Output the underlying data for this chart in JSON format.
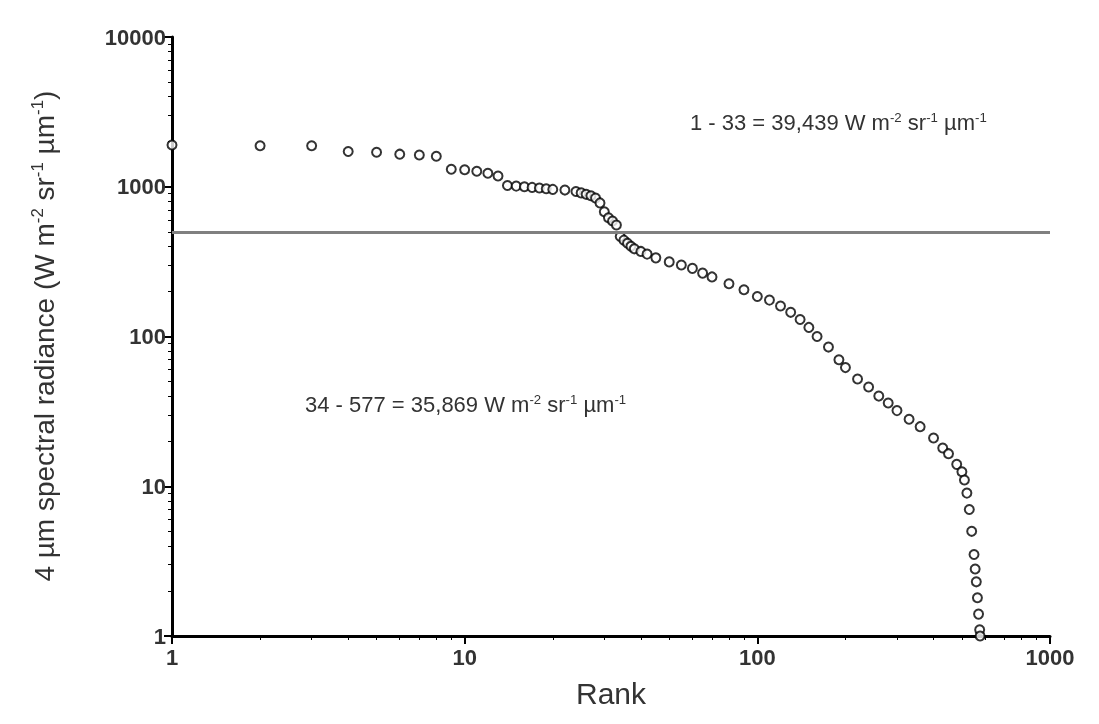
{
  "chart_data": {
    "type": "scatter",
    "xlabel": "Rank",
    "ylabel": "4 µm spectral radiance (W m$^{-2}$ sr$^{-1}$ µm$^{-1}$)",
    "annotations": [
      "1 - 33 = 39,439 W m$^{-2}$ sr$^{-1}$ µm$^{-1}$",
      "34 - 577 = 35,869 W m$^{-2}$ sr$^{-1}$ µm$^{-1}$"
    ],
    "log": "xy",
    "xlim": [
      1,
      1000
    ],
    "xticks": [
      1,
      10,
      100,
      1000
    ],
    "ylim": [
      1,
      10000
    ],
    "yticks": [
      1,
      10,
      100,
      1000,
      10000
    ],
    "grid": false,
    "legend": false,
    "marker": "circle",
    "ref_lines": [
      {
        "axis": "y",
        "value": 500,
        "color": "#808080"
      }
    ],
    "series": [
      {
        "color": "#000000",
        "x": [
          1,
          2,
          3,
          4,
          5,
          6,
          7,
          8,
          9,
          10,
          11,
          12,
          13,
          14,
          15,
          16,
          17,
          18,
          19,
          20,
          22,
          24,
          25,
          26,
          27,
          28,
          29,
          30,
          31,
          32,
          33,
          34,
          35,
          36,
          37,
          38,
          40,
          42,
          45,
          50,
          55,
          60,
          65,
          70,
          80,
          90,
          100,
          110,
          120,
          130,
          140,
          150,
          160,
          175,
          190,
          200,
          220,
          240,
          260,
          280,
          300,
          330,
          360,
          400,
          430,
          450,
          480,
          500,
          510,
          520,
          530,
          540,
          550,
          555,
          560,
          565,
          570,
          575,
          577
        ],
        "values": [
          1900,
          1880,
          1880,
          1720,
          1700,
          1650,
          1630,
          1600,
          1310,
          1300,
          1270,
          1230,
          1180,
          1020,
          1010,
          1000,
          990,
          980,
          970,
          960,
          950,
          930,
          910,
          890,
          870,
          840,
          780,
          680,
          620,
          590,
          555,
          465,
          440,
          420,
          400,
          385,
          370,
          355,
          335,
          315,
          300,
          285,
          265,
          250,
          225,
          205,
          185,
          175,
          160,
          145,
          130,
          115,
          100,
          85,
          70,
          62,
          52,
          46,
          40,
          36,
          32,
          28,
          25,
          21,
          18,
          16.5,
          14,
          12.5,
          11,
          9,
          7,
          5,
          3.5,
          2.8,
          2.3,
          1.8,
          1.4,
          1.1,
          1
        ]
      }
    ]
  }
}
